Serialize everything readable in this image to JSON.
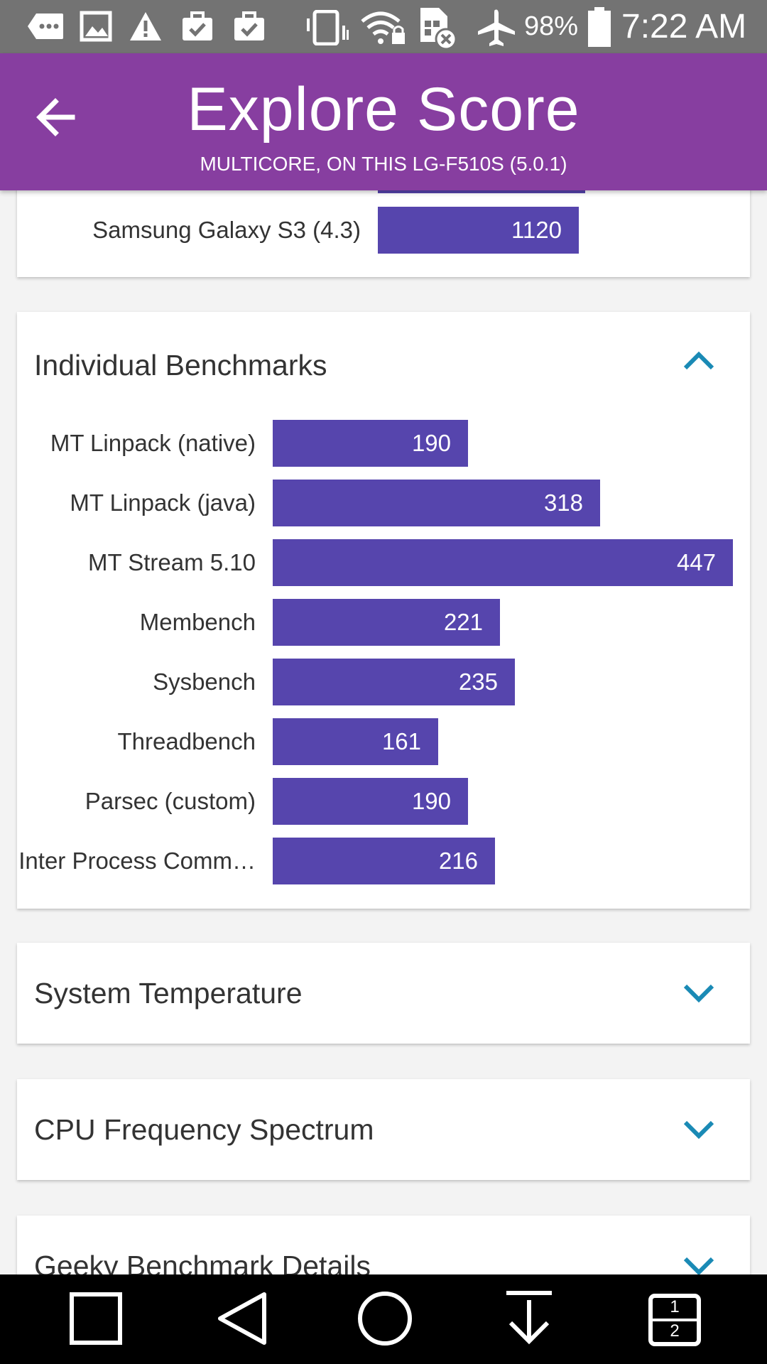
{
  "status_bar": {
    "battery_percent": "98%",
    "time": "7:22 AM",
    "icons": [
      "message-icon",
      "image-icon",
      "warning-icon",
      "briefcase-check-icon",
      "briefcase-check-icon",
      "vibrate-icon",
      "wifi-lock-icon",
      "no-sim-icon",
      "airplane-icon",
      "battery-icon"
    ]
  },
  "app_bar": {
    "title": "Explore Score",
    "subtitle": "MULTICORE, ON THIS LG-F510S (5.0.1)",
    "back_icon": "arrow-back-icon",
    "background": "#873ea0"
  },
  "device_card": {
    "rows": [
      {
        "label": "Samsung Galaxy S3 (4.3)",
        "value": 1120
      }
    ]
  },
  "benchmarks_card": {
    "title": "Individual Benchmarks",
    "expanded": true,
    "rows": [
      {
        "label": "MT Linpack (native)",
        "value": 190
      },
      {
        "label": "MT Linpack (java)",
        "value": 318
      },
      {
        "label": "MT Stream 5.10",
        "value": 447
      },
      {
        "label": "Membench",
        "value": 221
      },
      {
        "label": "Sysbench",
        "value": 235
      },
      {
        "label": "Threadbench",
        "value": 161
      },
      {
        "label": "Parsec (custom)",
        "value": 190
      },
      {
        "label": "Inter Process Comm…",
        "value": 216
      }
    ]
  },
  "collapsed_sections": [
    {
      "title": "System Temperature"
    },
    {
      "title": "CPU Frequency Spectrum"
    },
    {
      "title": "Geeky Benchmark Details"
    }
  ],
  "colors": {
    "bar": "#5645ad",
    "accent": "#1a8ab5"
  },
  "nav_bar": {
    "buttons": [
      "recents-icon",
      "back-triangle-icon",
      "home-circle-icon",
      "notification-pull-icon",
      "dual-window-icon"
    ],
    "dual_window_top": "1",
    "dual_window_bottom": "2"
  }
}
